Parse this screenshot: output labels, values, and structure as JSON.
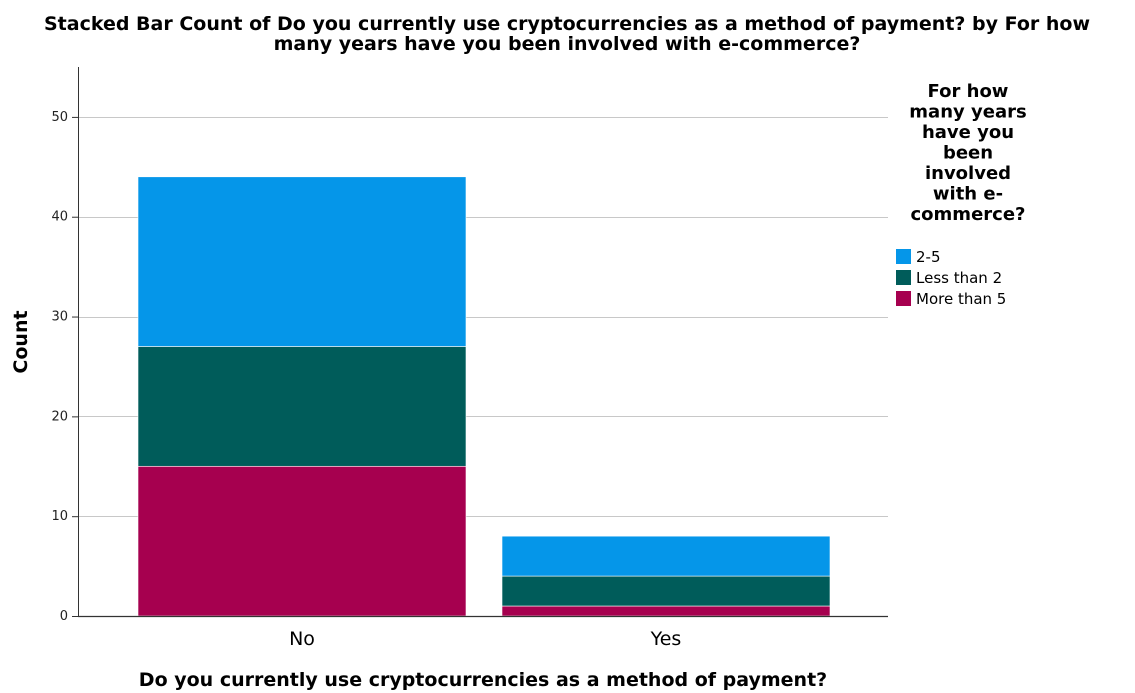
{
  "chart_data": {
    "type": "bar",
    "stacked": true,
    "title": "Stacked Bar Count of Do you currently use cryptocurrencies as a method of payment? by For how many years have you been involved with e-commerce?",
    "title_lines": [
      "Stacked Bar Count of Do you currently use cryptocurrencies as a method of payment? by For how",
      "many years have you been involved with e-commerce?"
    ],
    "xlabel": "Do you currently use cryptocurrencies as a method of payment?",
    "ylabel": "Count",
    "categories": [
      "No",
      "Yes"
    ],
    "series": [
      {
        "name": "More than 5",
        "color": "#a6004f",
        "values": [
          15,
          1
        ]
      },
      {
        "name": "Less than 2",
        "color": "#005c5a",
        "values": [
          12,
          3
        ]
      },
      {
        "name": "2-5",
        "color": "#0596e9",
        "values": [
          17,
          4
        ]
      }
    ],
    "ylim": [
      0,
      55
    ],
    "yticks": [
      0,
      10,
      20,
      30,
      40,
      50
    ],
    "grid": true,
    "legend": {
      "title_lines": [
        "For how",
        "many years",
        "have you",
        "been",
        "involved",
        "with e-",
        "commerce?"
      ],
      "position": "right",
      "entries": [
        {
          "label": "2-5",
          "color": "#0596e9"
        },
        {
          "label": "Less than 2",
          "color": "#005c5a"
        },
        {
          "label": "More than 5",
          "color": "#a6004f"
        }
      ]
    }
  }
}
